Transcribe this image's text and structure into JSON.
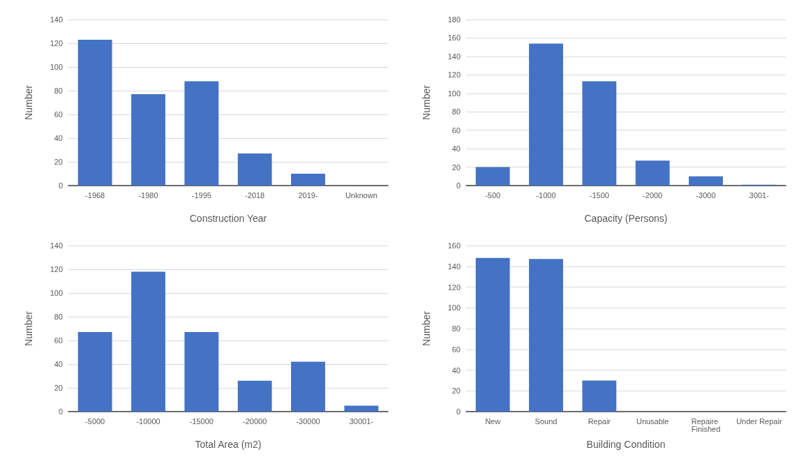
{
  "chart_data": [
    {
      "type": "bar",
      "xlabel": "Construction Year",
      "ylabel": "Number",
      "categories": [
        "-1968",
        "-1980",
        "-1995",
        "-2018",
        "2019-",
        "Unknown"
      ],
      "values": [
        123,
        77,
        88,
        27,
        10,
        0
      ],
      "color": "#4472c4",
      "ylim": [
        0,
        140
      ],
      "yticks": [
        0,
        20,
        40,
        60,
        80,
        100,
        120,
        140
      ],
      "grid": "y"
    },
    {
      "type": "bar",
      "xlabel": "Capacity (Persons)",
      "ylabel": "Number",
      "categories": [
        "-500",
        "-1000",
        "-1500",
        "-2000",
        "-3000",
        "3001-"
      ],
      "values": [
        20,
        154,
        113,
        27,
        10,
        1
      ],
      "color": "#4472c4",
      "ylim": [
        0,
        180
      ],
      "yticks": [
        0,
        20,
        40,
        60,
        80,
        100,
        120,
        140,
        160,
        180
      ],
      "grid": "y"
    },
    {
      "type": "bar",
      "xlabel": "Total Area (m2)",
      "ylabel": "Number",
      "categories": [
        "-5000",
        "-10000",
        "-15000",
        "-20000",
        "-30000",
        "30001-"
      ],
      "values": [
        67,
        118,
        67,
        26,
        42,
        5
      ],
      "color": "#4472c4",
      "ylim": [
        0,
        140
      ],
      "yticks": [
        0,
        20,
        40,
        60,
        80,
        100,
        120,
        140
      ],
      "grid": "y"
    },
    {
      "type": "bar",
      "xlabel": "Building Condition",
      "ylabel": "Number",
      "categories": [
        "New",
        "Sound",
        "Repair",
        "Unusable",
        "Repaire Finished",
        "Under Repair"
      ],
      "values": [
        148,
        147,
        30,
        0,
        0,
        0
      ],
      "color": "#4472c4",
      "ylim": [
        0,
        160
      ],
      "yticks": [
        0,
        20,
        40,
        60,
        80,
        100,
        120,
        140,
        160
      ],
      "grid": "y"
    }
  ]
}
